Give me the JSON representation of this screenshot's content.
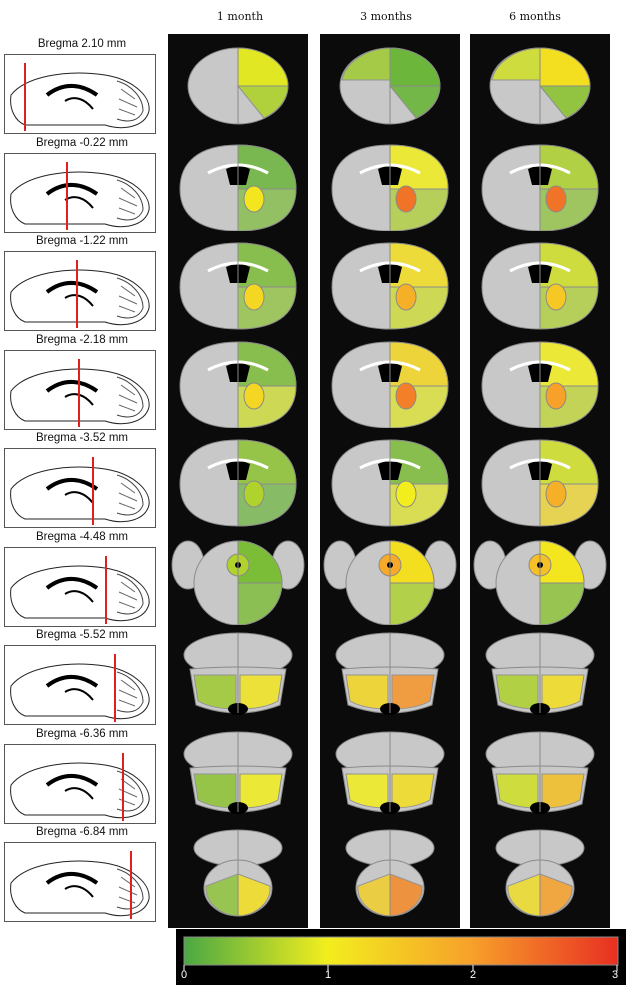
{
  "columns": [
    "1 month",
    "3 months",
    "6 months"
  ],
  "rows": [
    {
      "label": "Bregma 2.10 mm",
      "shape": "round",
      "fills": [
        [
          0.6,
          0.9,
          0.4
        ],
        [
          0.2,
          0.2,
          0.5
        ],
        [
          0.4,
          1.2,
          0.8
        ]
      ]
    },
    {
      "label": "Bregma -0.22 mm",
      "shape": "coronal",
      "fills": [
        [
          0.2,
          1.1,
          0.3
        ],
        [
          1.0,
          2.4,
          0.6
        ],
        [
          0.6,
          2.4,
          0.4
        ]
      ]
    },
    {
      "label": "Bregma -1.22 mm",
      "shape": "coronal",
      "fills": [
        [
          0.3,
          1.3,
          0.4
        ],
        [
          1.2,
          1.8,
          0.8
        ],
        [
          0.8,
          1.5,
          0.6
        ]
      ]
    },
    {
      "label": "Bregma -2.18 mm",
      "shape": "coronal",
      "fills": [
        [
          0.3,
          1.3,
          0.8
        ],
        [
          1.3,
          2.3,
          0.9
        ],
        [
          1.0,
          2.0,
          0.7
        ]
      ]
    },
    {
      "label": "Bregma -3.52 mm",
      "shape": "coronal",
      "fills": [
        [
          0.4,
          0.6,
          0.2
        ],
        [
          0.3,
          1.0,
          0.9
        ],
        [
          0.8,
          1.8,
          1.3
        ]
      ]
    },
    {
      "label": "Bregma -4.48 mm",
      "shape": "lobes",
      "fills": [
        [
          0.3,
          0.6,
          0.3
        ],
        [
          1.2,
          1.9,
          0.6
        ],
        [
          1.1,
          1.6,
          0.4
        ]
      ]
    },
    {
      "label": "Bregma -5.52 mm",
      "shape": "cerebellum",
      "fills": [
        [
          0.5,
          1.1,
          0.4
        ],
        [
          1.3,
          2.1,
          0.6
        ],
        [
          0.6,
          1.2,
          1.0
        ]
      ]
    },
    {
      "label": "Bregma -6.36 mm",
      "shape": "cerebellum",
      "fills": [
        [
          0.4,
          1.0,
          0.3
        ],
        [
          1.0,
          1.2,
          0.5
        ],
        [
          0.8,
          1.6,
          0.7
        ]
      ]
    },
    {
      "label": "Bregma -6.84 mm",
      "shape": "hind",
      "fills": [
        [
          0.4,
          1.2,
          0.3
        ],
        [
          1.4,
          2.2,
          0.8
        ],
        [
          1.2,
          2.0,
          0.7
        ]
      ]
    }
  ],
  "colorbar": {
    "ticks": [
      "0",
      "1",
      "2",
      "3"
    ],
    "colors": [
      "#4aa843",
      "#f2ee1e",
      "#f7a12a",
      "#e82f22"
    ]
  },
  "sagittal_marker_color": "#e02020"
}
